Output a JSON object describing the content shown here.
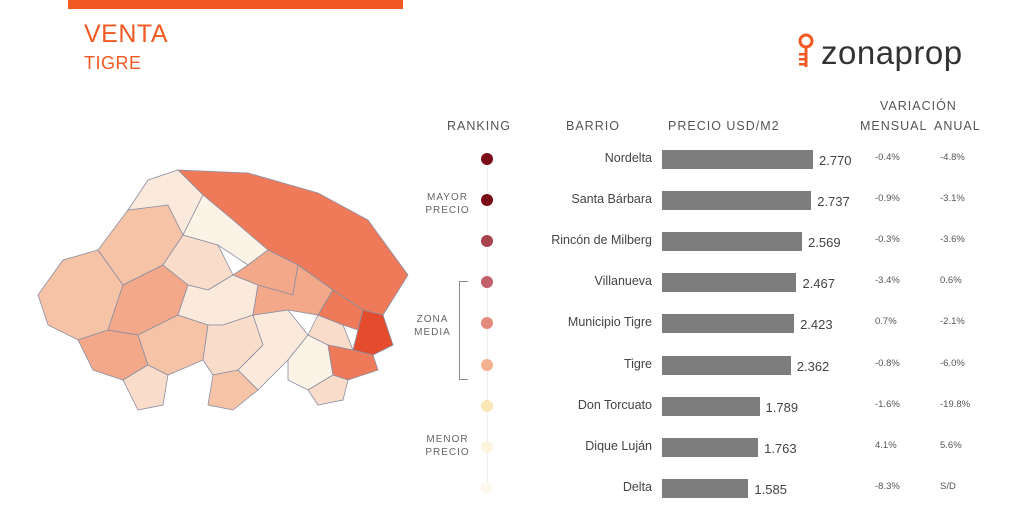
{
  "header": {
    "title": "VENTA",
    "subtitle": "TIGRE",
    "logo_text": "zonaprop",
    "logo_color": "#f05a22"
  },
  "columns": {
    "ranking": "RANKING",
    "barrio": "BARRIO",
    "precio": "PRECIO USD/M2",
    "variacion": "VARIACIÓN",
    "mensual": "MENSUAL",
    "anual": "ANUAL"
  },
  "groups": {
    "mayor": [
      "MAYOR",
      "PRECIO"
    ],
    "zona": [
      "ZONA",
      "MEDIA"
    ],
    "menor": [
      "MENOR",
      "PRECIO"
    ]
  },
  "chart_data": {
    "type": "bar",
    "categories": [
      "Nordelta",
      "Santa Bárbara",
      "Rincón de Milberg",
      "Villanueva",
      "Municipio Tigre",
      "Tigre",
      "Don Torcuato",
      "Dique Luján",
      "Delta"
    ],
    "values": [
      2770,
      2737,
      2569,
      2467,
      2423,
      2362,
      1789,
      1763,
      1585
    ],
    "value_labels": [
      "2.770",
      "2.737",
      "2.569",
      "2.467",
      "2.423",
      "2.362",
      "1.789",
      "1.763",
      "1.585"
    ],
    "mensual": [
      "-0.4%",
      "-0.9%",
      "-0.3%",
      "-3.4%",
      "0.7%",
      "-0.8%",
      "-1.6%",
      "4.1%",
      "-8.3%"
    ],
    "anual": [
      "-4.8%",
      "-3.1%",
      "-3.6%",
      "0.6%",
      "-2.1%",
      "-6.0%",
      "-19.8%",
      "5.6%",
      "S/D"
    ],
    "dot_colors": [
      "#7a0c17",
      "#7a0c17",
      "#a8434e",
      "#c2606b",
      "#e58a7e",
      "#f3b191",
      "#fbe7b5",
      "#fcf4dc",
      "#fdf8ec"
    ],
    "bar_color": "#7d7d7d",
    "xlim": [
      0,
      3000
    ]
  },
  "map": {
    "region_colors": [
      "#f4a88a",
      "#f6c3a6",
      "#f9ddca",
      "#fbe9dc",
      "#ee7a5a",
      "#e54b2d",
      "#fdf2e6"
    ]
  }
}
